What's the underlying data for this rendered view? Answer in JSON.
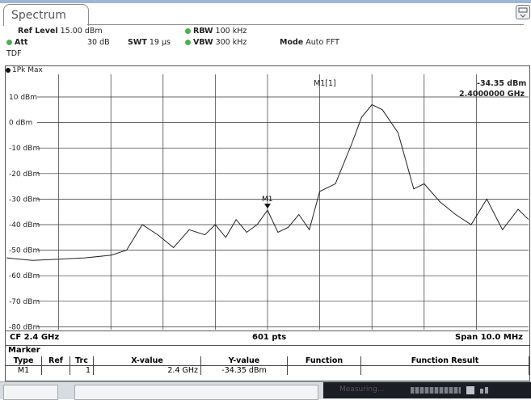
{
  "tab": {
    "label": "Spectrum"
  },
  "settings": {
    "ref_level_label": "Ref Level",
    "ref_level_value": "15.00 dBm",
    "att_label": "Att",
    "att_value": "30 dB",
    "swt_label": "SWT",
    "swt_value": "19 µs",
    "rbw_label": "RBW",
    "rbw_value": "100 kHz",
    "vbw_label": "VBW",
    "vbw_value": "300 kHz",
    "mode_label": "Mode",
    "mode_value": "Auto FFT",
    "tdf": "TDF",
    "indicator_color": "#4caf50"
  },
  "trace_label": "1Pk Max",
  "marker_readout": {
    "name": "M1[1]",
    "level": "-34.35 dBm",
    "freq": "2.4000000 GHz"
  },
  "plot_marker_label": "M1",
  "footer": {
    "center": "CF 2.4 GHz",
    "points": "601 pts",
    "span": "Span 10.0 MHz"
  },
  "marker_table": {
    "title": "Marker",
    "headers": [
      "Type",
      "Ref",
      "Trc",
      "X-value",
      "Y-value",
      "Function",
      "Function Result"
    ],
    "rows": [
      {
        "type": "M1",
        "ref": "",
        "trc": "1",
        "x": "2.4 GHz",
        "y": "-34.35 dBm",
        "function": "",
        "result": ""
      }
    ]
  },
  "bottom_bar": {
    "status_text": "Measuring..."
  },
  "chart_data": {
    "type": "line",
    "ylabels": [
      "10 dBm",
      "0 dBm",
      "-10 dBm",
      "-20 dBm",
      "-30 dBm",
      "-40 dBm",
      "-50 dBm",
      "-60 dBm",
      "-70 dBm",
      "-80 dBm"
    ],
    "ylim": [
      -85,
      15
    ],
    "xlim": [
      2395,
      2405
    ],
    "x_unit": "MHz",
    "grid": true,
    "series": [
      {
        "x": [
          2395.0,
          2395.5,
          2396.0,
          2396.5,
          2397.0,
          2397.3,
          2397.6,
          2397.9,
          2398.2,
          2398.5,
          2398.8,
          2399.0,
          2399.2,
          2399.4,
          2399.6,
          2399.8,
          2400.0,
          2400.2,
          2400.4,
          2400.6,
          2400.8,
          2401.0,
          2401.3,
          2401.6,
          2401.8,
          2402.0,
          2402.2,
          2402.5,
          2402.8,
          2403.0,
          2403.3,
          2403.6,
          2403.9,
          2404.2,
          2404.5,
          2404.8,
          2405.0
        ],
        "y": [
          -53,
          -54,
          -53.5,
          -53,
          -52,
          -50,
          -40,
          -44,
          -49,
          -42,
          -44,
          -40,
          -45,
          -38,
          -43,
          -40,
          -34.35,
          -43,
          -41,
          -36,
          -42,
          -27,
          -24,
          -9,
          2,
          7,
          5,
          -4,
          -26,
          -24,
          -31,
          -36,
          -40,
          -30,
          -42,
          -34,
          -38
        ]
      }
    ],
    "marker": {
      "name": "M1",
      "x": 2400.0,
      "y": -34.35
    }
  }
}
